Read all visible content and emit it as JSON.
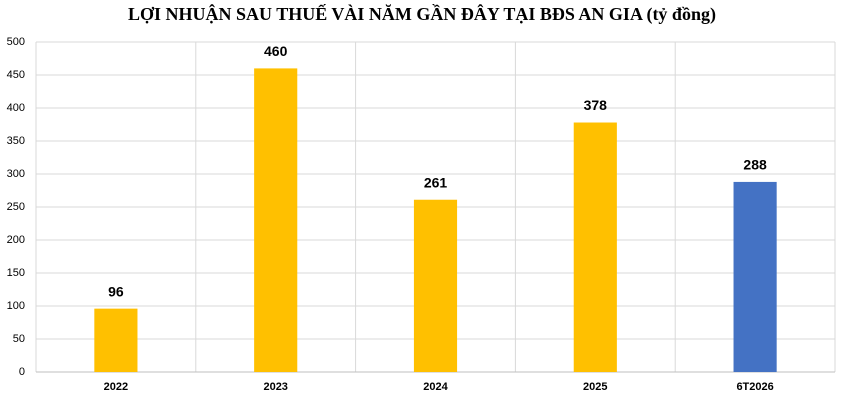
{
  "chart_data": {
    "type": "bar",
    "title": "LỢI NHUẬN SAU THUẾ VÀI NĂM GẦN ĐÂY TẠI BĐS AN GIA (tỷ đồng)",
    "categories": [
      "2022",
      "2023",
      "2024",
      "2025",
      "6T2026"
    ],
    "values": [
      96,
      460,
      261,
      378,
      288
    ],
    "colors": [
      "#FFC000",
      "#FFC000",
      "#FFC000",
      "#FFC000",
      "#4472C4"
    ],
    "ylim": [
      0,
      500
    ],
    "yticks": [
      0,
      50,
      100,
      150,
      200,
      250,
      300,
      350,
      400,
      450,
      500
    ],
    "grid": true
  }
}
